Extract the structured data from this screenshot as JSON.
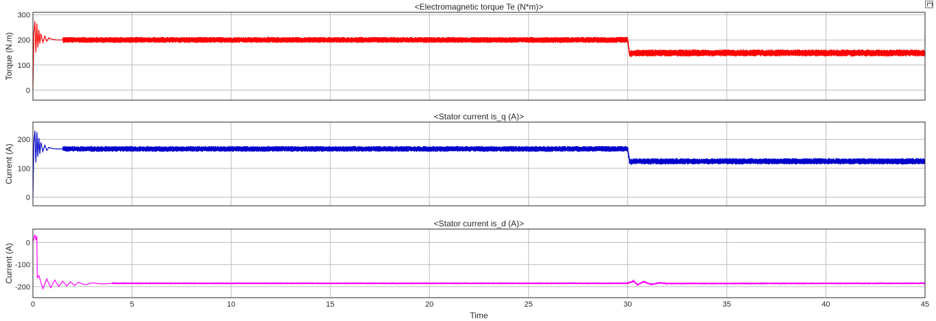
{
  "window": {
    "restore_icon": "restore-icon"
  },
  "chart_data": [
    {
      "type": "line",
      "title": "<Electromagnetic torque Te (N*m)>",
      "xlabel": "",
      "ylabel": "Torque (N.m)",
      "xlim": [
        0,
        45
      ],
      "ylim": [
        -40,
        310
      ],
      "yticks": [
        0,
        100,
        200,
        300
      ],
      "xticks": [
        0,
        5,
        10,
        15,
        20,
        25,
        30,
        35,
        40,
        45
      ],
      "grid": true,
      "series": [
        {
          "color": "#ff0000",
          "x": [
            0,
            0.05,
            0.1,
            0.15,
            0.2,
            0.25,
            0.3,
            0.35,
            0.4,
            0.5,
            0.6,
            0.7,
            0.8,
            1.0,
            1.2,
            1.5,
            30.0,
            30.1,
            30.3,
            45
          ],
          "y": [
            0,
            230,
            275,
            150,
            265,
            170,
            240,
            185,
            225,
            190,
            215,
            195,
            208,
            202,
            200,
            200,
            200,
            145,
            148,
            148
          ],
          "ripple_after": 1.5,
          "ripple_amp": [
            12,
            14
          ]
        }
      ]
    },
    {
      "type": "line",
      "title": "<Stator current is_q (A)>",
      "xlabel": "",
      "ylabel": "Current (A)",
      "xlim": [
        0,
        45
      ],
      "ylim": [
        -30,
        260
      ],
      "yticks": [
        0,
        100,
        200
      ],
      "xticks": [
        0,
        5,
        10,
        15,
        20,
        25,
        30,
        35,
        40,
        45
      ],
      "grid": true,
      "series": [
        {
          "color": "#0000cc",
          "x": [
            0,
            0.05,
            0.1,
            0.15,
            0.2,
            0.25,
            0.3,
            0.35,
            0.4,
            0.5,
            0.6,
            0.7,
            0.8,
            1.0,
            1.2,
            1.5,
            30.0,
            30.1,
            30.3,
            45
          ],
          "y": [
            0,
            190,
            230,
            120,
            225,
            140,
            205,
            150,
            190,
            158,
            180,
            162,
            172,
            168,
            167,
            167,
            167,
            122,
            124,
            124
          ],
          "ripple_after": 1.5,
          "ripple_amp": [
            10,
            11
          ]
        }
      ]
    },
    {
      "type": "line",
      "title": "<Stator current is_d (A)>",
      "xlabel": "Time",
      "ylabel": "Current (A)",
      "xlim": [
        0,
        45
      ],
      "ylim": [
        -250,
        60
      ],
      "yticks": [
        -200,
        -100,
        0
      ],
      "xticks": [
        0,
        5,
        10,
        15,
        20,
        25,
        30,
        35,
        40,
        45
      ],
      "grid": true,
      "series": [
        {
          "color": "#ff00ff",
          "x": [
            0,
            0.05,
            0.1,
            0.15,
            0.2,
            0.22,
            0.3,
            0.5,
            0.7,
            0.9,
            1.1,
            1.3,
            1.5,
            1.7,
            1.9,
            2.1,
            2.3,
            2.6,
            3.0,
            3.5,
            4.0,
            30.0,
            30.3,
            30.5,
            30.8,
            31.2,
            31.6,
            32.0,
            45
          ],
          "y": [
            0,
            20,
            35,
            10,
            30,
            -160,
            -150,
            -210,
            -165,
            -205,
            -170,
            -200,
            -175,
            -197,
            -178,
            -195,
            -180,
            -192,
            -183,
            -188,
            -185,
            -185,
            -175,
            -192,
            -178,
            -190,
            -183,
            -186,
            -185
          ],
          "ripple_after": 4.0,
          "ripple_amp": [
            4,
            4
          ]
        }
      ]
    }
  ]
}
